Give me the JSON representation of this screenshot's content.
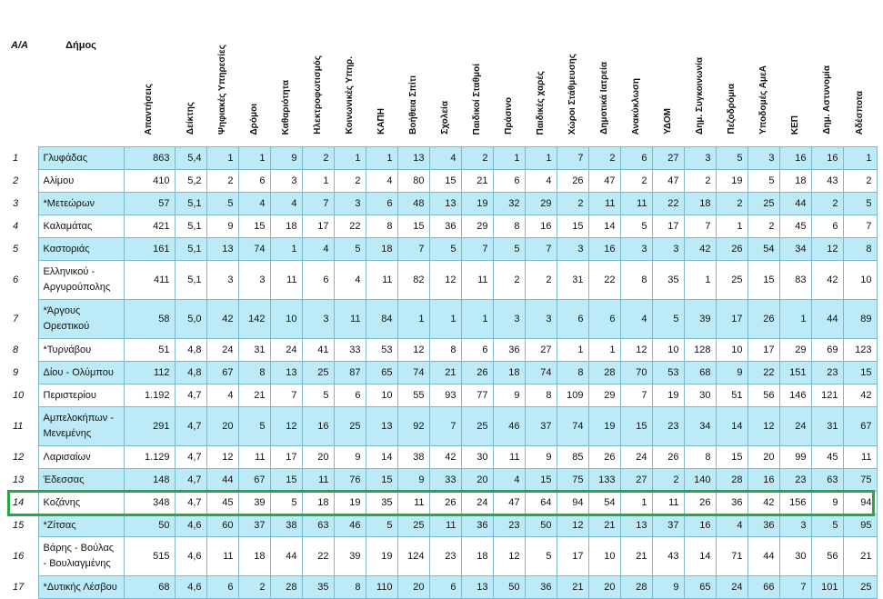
{
  "table": {
    "headers": [
      "A/A",
      "Δήμος",
      "Απαντήσεις",
      "Δείκτης",
      "Ψηφιακές Υπηρεσίες",
      "Δρόμοι",
      "Καθαριότητα",
      "Ηλεκτροφωτισμός",
      "Κοινωνικές Υπηρ.",
      "ΚΑΠΗ",
      "Βοήθεια Σπίτι",
      "Σχολεία",
      "Παιδικοί Σταθμοί",
      "Πράσινο",
      "Παιδικές χαρές",
      "Χώροι Στάθμευσης",
      "Δημοτικά Ιατρεία",
      "Ανακύκλωση",
      "ΥΔΟΜ",
      "Δημ. Συγκοινωνία",
      "Πεζοδρόμια",
      "Υποδομές ΑμεΑ",
      "ΚΕΠ",
      "Δημ. Αστυνομία",
      "Αδέσποτα"
    ],
    "rows": [
      [
        "1",
        "Γλυφάδας",
        "863",
        "5,4",
        "1",
        "1",
        "9",
        "2",
        "1",
        "1",
        "13",
        "4",
        "2",
        "1",
        "1",
        "7",
        "2",
        "6",
        "27",
        "3",
        "5",
        "3",
        "16",
        "16",
        "1"
      ],
      [
        "2",
        "Αλίμου",
        "410",
        "5,2",
        "2",
        "6",
        "3",
        "1",
        "2",
        "4",
        "80",
        "15",
        "21",
        "6",
        "4",
        "26",
        "47",
        "2",
        "47",
        "2",
        "19",
        "5",
        "18",
        "43",
        "2"
      ],
      [
        "3",
        "*Μετεώρων",
        "57",
        "5,1",
        "5",
        "4",
        "4",
        "7",
        "3",
        "6",
        "48",
        "13",
        "19",
        "32",
        "29",
        "2",
        "11",
        "11",
        "22",
        "18",
        "2",
        "25",
        "44",
        "2",
        "5"
      ],
      [
        "4",
        "Καλαμάτας",
        "421",
        "5,1",
        "9",
        "15",
        "18",
        "17",
        "22",
        "8",
        "15",
        "36",
        "29",
        "8",
        "16",
        "15",
        "14",
        "5",
        "17",
        "7",
        "1",
        "2",
        "45",
        "6",
        "7"
      ],
      [
        "5",
        "Καστοριάς",
        "161",
        "5,1",
        "13",
        "74",
        "1",
        "4",
        "5",
        "18",
        "7",
        "5",
        "7",
        "5",
        "7",
        "3",
        "16",
        "3",
        "3",
        "42",
        "26",
        "54",
        "34",
        "12",
        "8"
      ],
      [
        "6",
        "Ελληνικού - Αργυρούπολης",
        "411",
        "5,1",
        "3",
        "3",
        "11",
        "6",
        "4",
        "11",
        "82",
        "12",
        "11",
        "2",
        "2",
        "31",
        "22",
        "8",
        "35",
        "1",
        "25",
        "15",
        "83",
        "42",
        "10"
      ],
      [
        "7",
        "*Άργους Ορεστικού",
        "58",
        "5,0",
        "42",
        "142",
        "10",
        "3",
        "11",
        "84",
        "1",
        "1",
        "1",
        "3",
        "3",
        "6",
        "6",
        "4",
        "5",
        "39",
        "17",
        "26",
        "1",
        "44",
        "89"
      ],
      [
        "8",
        "*Τυρνάβου",
        "51",
        "4,8",
        "24",
        "31",
        "24",
        "41",
        "33",
        "53",
        "12",
        "8",
        "6",
        "36",
        "27",
        "1",
        "1",
        "12",
        "10",
        "128",
        "10",
        "17",
        "29",
        "69",
        "123"
      ],
      [
        "9",
        "Δίου - Ολύμπου",
        "112",
        "4,8",
        "67",
        "8",
        "13",
        "25",
        "87",
        "65",
        "74",
        "21",
        "26",
        "18",
        "74",
        "8",
        "28",
        "70",
        "53",
        "68",
        "9",
        "22",
        "151",
        "23",
        "15"
      ],
      [
        "10",
        "Περιστερίου",
        "1.192",
        "4,7",
        "4",
        "21",
        "7",
        "5",
        "6",
        "10",
        "55",
        "93",
        "77",
        "9",
        "8",
        "109",
        "29",
        "7",
        "19",
        "30",
        "51",
        "56",
        "146",
        "121",
        "42"
      ],
      [
        "11",
        "Αμπελοκήπων - Μενεμένης",
        "291",
        "4,7",
        "20",
        "5",
        "12",
        "16",
        "25",
        "13",
        "92",
        "7",
        "25",
        "46",
        "37",
        "74",
        "19",
        "15",
        "23",
        "34",
        "14",
        "12",
        "24",
        "31",
        "67"
      ],
      [
        "12",
        "Λαρισαίων",
        "1.129",
        "4,7",
        "12",
        "11",
        "17",
        "20",
        "9",
        "14",
        "38",
        "42",
        "30",
        "11",
        "9",
        "85",
        "26",
        "24",
        "26",
        "8",
        "15",
        "20",
        "99",
        "45",
        "11"
      ],
      [
        "13",
        "Έδεσσας",
        "148",
        "4,7",
        "44",
        "67",
        "15",
        "11",
        "76",
        "15",
        "9",
        "33",
        "20",
        "4",
        "15",
        "75",
        "133",
        "27",
        "2",
        "140",
        "28",
        "16",
        "23",
        "63",
        "75"
      ],
      [
        "14",
        "Κοζάνης",
        "348",
        "4,7",
        "45",
        "39",
        "5",
        "18",
        "19",
        "35",
        "11",
        "26",
        "24",
        "47",
        "64",
        "94",
        "54",
        "1",
        "11",
        "26",
        "36",
        "42",
        "156",
        "9",
        "94"
      ],
      [
        "15",
        "*Ζίτσας",
        "50",
        "4,6",
        "60",
        "37",
        "38",
        "63",
        "46",
        "5",
        "25",
        "11",
        "36",
        "23",
        "50",
        "12",
        "21",
        "13",
        "37",
        "16",
        "4",
        "36",
        "3",
        "5",
        "95"
      ],
      [
        "16",
        "Βάρης - Βούλας - Βουλιαγμένης",
        "515",
        "4,6",
        "11",
        "18",
        "44",
        "22",
        "39",
        "19",
        "124",
        "23",
        "18",
        "12",
        "5",
        "17",
        "10",
        "21",
        "43",
        "14",
        "71",
        "44",
        "30",
        "56",
        "21"
      ],
      [
        "17",
        "*Δυτικής Λέσβου",
        "68",
        "4,6",
        "6",
        "2",
        "28",
        "35",
        "8",
        "110",
        "20",
        "6",
        "13",
        "50",
        "36",
        "21",
        "20",
        "28",
        "9",
        "65",
        "24",
        "66",
        "7",
        "101",
        "25"
      ]
    ],
    "tall_rows": [
      5,
      6,
      10,
      15
    ],
    "highlighted_row": 13,
    "colors": {
      "row_alt": "#bdeaf7",
      "row_plain": "#ffffff",
      "grid": "#7fb7c9",
      "highlight": "#27a844"
    }
  }
}
